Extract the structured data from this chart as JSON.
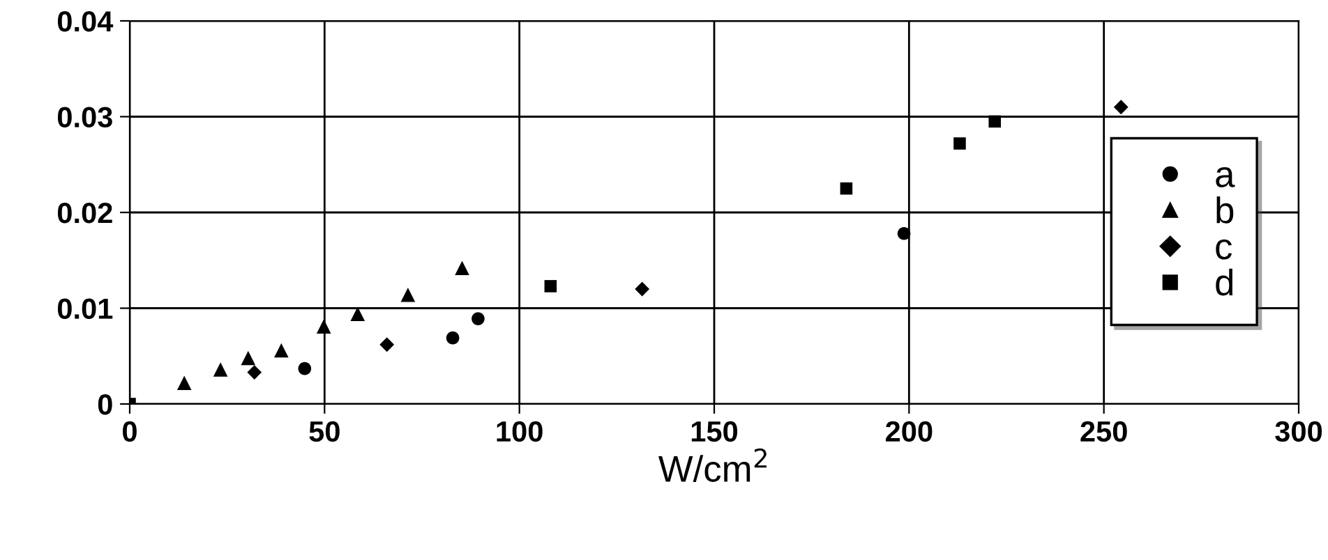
{
  "chart_data": {
    "type": "scatter",
    "xlabel": "W/cm$^{2}$",
    "xlim": [
      0,
      300
    ],
    "xticks": [
      0,
      50,
      100,
      150,
      200,
      250,
      300
    ],
    "ylim": [
      0,
      0.04
    ],
    "yticks": [
      0,
      0.01,
      0.02,
      0.03,
      0.04
    ],
    "grid": true,
    "legend": "right",
    "series": [
      {
        "name": "a",
        "color": "#000000",
        "marker": "circle",
        "x": [
          44.9,
          82.9,
          89.4,
          198.7
        ],
        "values": [
          0.0037,
          0.0069,
          0.0089,
          0.0178
        ]
      },
      {
        "name": "b",
        "color": "#000000",
        "marker": "triangle",
        "x": [
          14,
          23.3,
          30.4,
          38.9,
          49.8,
          58.5,
          71.4,
          85.3
        ],
        "values": [
          0.0022,
          0.0036,
          0.0048,
          0.0056,
          0.0081,
          0.0094,
          0.0114,
          0.0142
        ]
      },
      {
        "name": "c",
        "color": "#000000",
        "marker": "diamond",
        "x": [
          32,
          66,
          131.5,
          254.4
        ],
        "values": [
          0.0033,
          0.0062,
          0.012,
          0.031
        ]
      },
      {
        "name": "d",
        "color": "#000000",
        "marker": "square",
        "x": [
          0,
          108,
          183.9,
          213,
          222
        ],
        "values": [
          0,
          0.0123,
          0.0225,
          0.0272,
          0.0295
        ]
      }
    ]
  }
}
